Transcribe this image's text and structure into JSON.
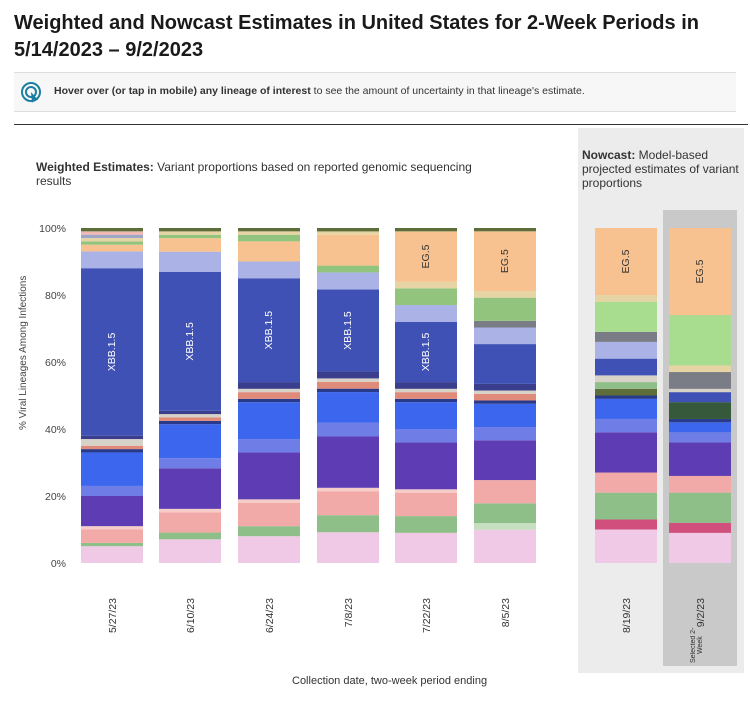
{
  "header": {
    "title": "Weighted and Nowcast Estimates in United States for 2-Week Periods in 5/14/2023 – 9/2/2023"
  },
  "hint": {
    "icon": "pointer-icon",
    "bold1": "Hover over (or tap in mobile) any lineage of interest",
    "rest": " to see the amount of uncertainty in that lineage's estimate."
  },
  "weighted": {
    "title_bold": "Weighted Estimates:",
    "title_rest": " Variant proportions based on reported genomic sequencing results"
  },
  "nowcast": {
    "title_bold": "Nowcast:",
    "title_rest": " Model-based projected estimates of variant proportions",
    "selected_label": "Selected 2-Week"
  },
  "colors": {
    "xbb": "#3f51b5",
    "eg5": "#f7c28f",
    "selected_bg": "#c9c9c9",
    "nowcast_bg": "#ececec",
    "accent": "#1a7fa3"
  },
  "chart_data": {
    "type": "bar",
    "stacked": true,
    "ylabel": "% Viral Lineages Among Infections",
    "xlabel": "Collection date, two-week period ending",
    "ylim": [
      0,
      100
    ],
    "yticks": [
      "0%",
      "20%",
      "40%",
      "60%",
      "80%",
      "100%"
    ],
    "categories": [
      "5/27/23",
      "6/10/23",
      "6/24/23",
      "7/8/23",
      "7/22/23",
      "8/5/23",
      "8/19/23",
      "9/2/23"
    ],
    "nowcast_categories": [
      "8/19/23",
      "9/2/23"
    ],
    "selected_category": "9/2/23",
    "bars": [
      {
        "date": "5/27/23",
        "segments": [
          {
            "v": 5,
            "c": "#efc9e6"
          },
          {
            "v": 1,
            "c": "#8fbf88"
          },
          {
            "v": 4,
            "c": "#f2aaa8"
          },
          {
            "v": 1,
            "c": "#f6cdc9"
          },
          {
            "v": 9,
            "c": "#5e3cb3"
          },
          {
            "v": 3,
            "c": "#6f7de6"
          },
          {
            "v": 10,
            "c": "#3d66ee"
          },
          {
            "v": 1,
            "c": "#2a3a8a"
          },
          {
            "v": 1,
            "c": "#e08a7a"
          },
          {
            "v": 2,
            "c": "#d7d2c8"
          },
          {
            "v": 1,
            "c": "#3a3e8c"
          },
          {
            "v": 50,
            "c": "#3f51b5",
            "label": "XBB.1.5"
          },
          {
            "v": 5,
            "c": "#aab2e6"
          },
          {
            "v": 2,
            "c": "#f7c28f"
          },
          {
            "v": 1,
            "c": "#93c47d"
          },
          {
            "v": 1,
            "c": "#e7d4a4"
          },
          {
            "v": 1,
            "c": "#a0a6c7"
          },
          {
            "v": 1,
            "c": "#f0b7b3"
          },
          {
            "v": 1,
            "c": "#5d6e3b"
          }
        ]
      },
      {
        "date": "6/10/23",
        "segments": [
          {
            "v": 7,
            "c": "#efc9e6"
          },
          {
            "v": 2,
            "c": "#8fbf88"
          },
          {
            "v": 6,
            "c": "#f2aaa8"
          },
          {
            "v": 1,
            "c": "#f6cdc9"
          },
          {
            "v": 12,
            "c": "#5e3cb3"
          },
          {
            "v": 3,
            "c": "#6f7de6"
          },
          {
            "v": 10,
            "c": "#3d66ee"
          },
          {
            "v": 1,
            "c": "#2a3a8a"
          },
          {
            "v": 1,
            "c": "#e08a7a"
          },
          {
            "v": 1,
            "c": "#d7d2c8"
          },
          {
            "v": 1,
            "c": "#3a3e8c"
          },
          {
            "v": 41,
            "c": "#3f51b5",
            "label": "XBB.1.5"
          },
          {
            "v": 6,
            "c": "#aab2e6"
          },
          {
            "v": 4,
            "c": "#f7c28f"
          },
          {
            "v": 1,
            "c": "#93c47d"
          },
          {
            "v": 1,
            "c": "#e7d4a4"
          },
          {
            "v": 1,
            "c": "#5d6e3b"
          }
        ]
      },
      {
        "date": "6/24/23",
        "segments": [
          {
            "v": 8,
            "c": "#efc9e6"
          },
          {
            "v": 3,
            "c": "#8fbf88"
          },
          {
            "v": 7,
            "c": "#f2aaa8"
          },
          {
            "v": 1,
            "c": "#f6cdc9"
          },
          {
            "v": 14,
            "c": "#5e3cb3"
          },
          {
            "v": 4,
            "c": "#6f7de6"
          },
          {
            "v": 11,
            "c": "#3d66ee"
          },
          {
            "v": 1,
            "c": "#2a3a8a"
          },
          {
            "v": 2,
            "c": "#e08a7a"
          },
          {
            "v": 1,
            "c": "#d7d2c8"
          },
          {
            "v": 2,
            "c": "#3a3e8c"
          },
          {
            "v": 31,
            "c": "#3f51b5",
            "label": "XBB.1.5"
          },
          {
            "v": 5,
            "c": "#aab2e6"
          },
          {
            "v": 6,
            "c": "#f7c28f"
          },
          {
            "v": 2,
            "c": "#93c47d"
          },
          {
            "v": 1,
            "c": "#e7d4a4"
          },
          {
            "v": 1,
            "c": "#5d6e3b"
          }
        ]
      },
      {
        "date": "7/8/23",
        "segments": [
          {
            "v": 9,
            "c": "#efc9e6"
          },
          {
            "v": 5,
            "c": "#8fbf88"
          },
          {
            "v": 7,
            "c": "#f2aaa8"
          },
          {
            "v": 1,
            "c": "#f6cdc9"
          },
          {
            "v": 15,
            "c": "#5e3cb3"
          },
          {
            "v": 4,
            "c": "#6f7de6"
          },
          {
            "v": 9,
            "c": "#3d66ee"
          },
          {
            "v": 1,
            "c": "#2a3a8a"
          },
          {
            "v": 2,
            "c": "#e08a7a"
          },
          {
            "v": 1,
            "c": "#d7d2c8"
          },
          {
            "v": 2,
            "c": "#3a3e8c"
          },
          {
            "v": 24,
            "c": "#3f51b5",
            "label": "XBB.1.5"
          },
          {
            "v": 5,
            "c": "#aab2e6"
          },
          {
            "v": 2,
            "c": "#93c47d"
          },
          {
            "v": 9,
            "c": "#f7c28f"
          },
          {
            "v": 1,
            "c": "#e7d4a4"
          },
          {
            "v": 1,
            "c": "#5d6e3b"
          }
        ]
      },
      {
        "date": "7/22/23",
        "segments": [
          {
            "v": 9,
            "c": "#efc9e6"
          },
          {
            "v": 5,
            "c": "#8fbf88"
          },
          {
            "v": 7,
            "c": "#f2aaa8"
          },
          {
            "v": 1,
            "c": "#f6cdc9"
          },
          {
            "v": 14,
            "c": "#5e3cb3"
          },
          {
            "v": 4,
            "c": "#6f7de6"
          },
          {
            "v": 8,
            "c": "#3d66ee"
          },
          {
            "v": 1,
            "c": "#2a3a8a"
          },
          {
            "v": 2,
            "c": "#e08a7a"
          },
          {
            "v": 1,
            "c": "#d7d2c8"
          },
          {
            "v": 2,
            "c": "#3a3e8c"
          },
          {
            "v": 18,
            "c": "#3f51b5",
            "label": "XBB.1.5"
          },
          {
            "v": 5,
            "c": "#aab2e6"
          },
          {
            "v": 5,
            "c": "#93c47d"
          },
          {
            "v": 2,
            "c": "#e7d4a4"
          },
          {
            "v": 15,
            "c": "#f7c28f",
            "label": "EG.5"
          },
          {
            "v": 1,
            "c": "#5d6e3b"
          }
        ]
      },
      {
        "date": "8/5/23",
        "segments": [
          {
            "v": 10,
            "c": "#efc9e6"
          },
          {
            "v": 2,
            "c": "#c6dfc0"
          },
          {
            "v": 6,
            "c": "#8fbf88"
          },
          {
            "v": 7,
            "c": "#f2aaa8"
          },
          {
            "v": 12,
            "c": "#5e3cb3"
          },
          {
            "v": 4,
            "c": "#6f7de6"
          },
          {
            "v": 7,
            "c": "#3d66ee"
          },
          {
            "v": 1,
            "c": "#2a3a8a"
          },
          {
            "v": 2,
            "c": "#e08a7a"
          },
          {
            "v": 1,
            "c": "#d7d2c8"
          },
          {
            "v": 2,
            "c": "#3a3e8c"
          },
          {
            "v": 12,
            "c": "#3f51b5"
          },
          {
            "v": 5,
            "c": "#aab2e6"
          },
          {
            "v": 2,
            "c": "#7a7d85"
          },
          {
            "v": 7,
            "c": "#93c47d"
          },
          {
            "v": 2,
            "c": "#e7d4a4"
          },
          {
            "v": 18,
            "c": "#f7c28f",
            "label": "EG.5"
          },
          {
            "v": 1,
            "c": "#5d6e3b"
          }
        ]
      },
      {
        "date": "8/19/23",
        "segments": [
          {
            "v": 10,
            "c": "#efc9e6"
          },
          {
            "v": 3,
            "c": "#d14f7d"
          },
          {
            "v": 8,
            "c": "#8fbf88"
          },
          {
            "v": 6,
            "c": "#f2aaa8"
          },
          {
            "v": 12,
            "c": "#5e3cb3"
          },
          {
            "v": 4,
            "c": "#6f7de6"
          },
          {
            "v": 6,
            "c": "#3d66ee"
          },
          {
            "v": 1,
            "c": "#2a3a8a"
          },
          {
            "v": 2,
            "c": "#5d6e3b"
          },
          {
            "v": 2,
            "c": "#8fbf88"
          },
          {
            "v": 2,
            "c": "#d7d2c8"
          },
          {
            "v": 5,
            "c": "#3f51b5"
          },
          {
            "v": 5,
            "c": "#aab2e6"
          },
          {
            "v": 3,
            "c": "#7a7d85"
          },
          {
            "v": 9,
            "c": "#a8dc8f"
          },
          {
            "v": 2,
            "c": "#e7d4a4"
          },
          {
            "v": 20,
            "c": "#f7c28f",
            "label": "EG.5"
          }
        ]
      },
      {
        "date": "9/2/23",
        "segments": [
          {
            "v": 9,
            "c": "#efc9e6"
          },
          {
            "v": 3,
            "c": "#d14f7d"
          },
          {
            "v": 9,
            "c": "#8fbf88"
          },
          {
            "v": 5,
            "c": "#f2aaa8"
          },
          {
            "v": 10,
            "c": "#5e3cb3"
          },
          {
            "v": 3,
            "c": "#6f7de6"
          },
          {
            "v": 3,
            "c": "#3d66ee"
          },
          {
            "v": 1,
            "c": "#2a3a8a"
          },
          {
            "v": 5,
            "c": "#35593a"
          },
          {
            "v": 3,
            "c": "#3f51b5"
          },
          {
            "v": 1,
            "c": "#d7d2c8"
          },
          {
            "v": 5,
            "c": "#7a7d85"
          },
          {
            "v": 2,
            "c": "#e7d4a4"
          },
          {
            "v": 15,
            "c": "#a8dc8f"
          },
          {
            "v": 26,
            "c": "#f7c28f",
            "label": "EG.5"
          }
        ]
      }
    ]
  }
}
